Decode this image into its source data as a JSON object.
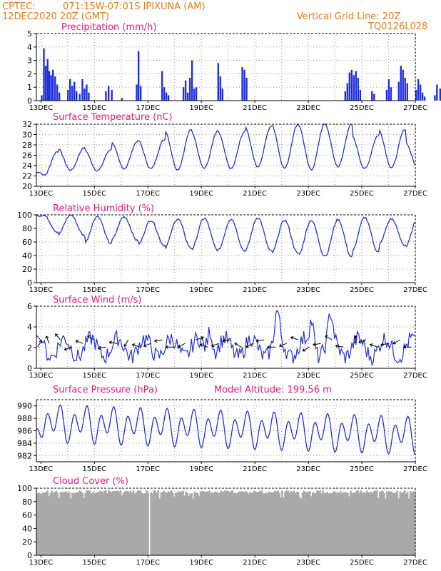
{
  "header": {
    "source": "CPTEC:",
    "location": "071:15W-07:01S  IPIXUNA (AM)",
    "init_time": "12DEC2020 20Z (GMT)",
    "grid_note": "Vertical Grid Line: 20Z",
    "code": "TQ0126L028"
  },
  "colors": {
    "header": "#e87a1a",
    "panel_title": "#e8177f",
    "series": "#1f2fe0",
    "cloud": "#a9a9a9",
    "wind_arrow": "#000000"
  },
  "chart_data": [
    {
      "id": "precip",
      "type": "bar",
      "title": "Precipitation (mm/h)",
      "ylim": [
        0,
        5
      ],
      "yticks": [
        "0",
        "1",
        "2",
        "3",
        "4",
        "5"
      ],
      "x_labels": [
        "13DEC",
        "15DEC",
        "17DEC",
        "19DEC",
        "21DEC",
        "23DEC",
        "25DEC",
        "27DEC"
      ],
      "grid": true,
      "events": [
        {
          "day": 0.2,
          "value": 0.4
        },
        {
          "day": 0.28,
          "value": 3.9
        },
        {
          "day": 0.35,
          "value": 2.6
        },
        {
          "day": 0.42,
          "value": 3.1
        },
        {
          "day": 0.48,
          "value": 2.2
        },
        {
          "day": 0.55,
          "value": 1.9
        },
        {
          "day": 0.62,
          "value": 2.3
        },
        {
          "day": 0.7,
          "value": 1.8
        },
        {
          "day": 0.78,
          "value": 1.2
        },
        {
          "day": 0.86,
          "value": 0.6
        },
        {
          "day": 1.18,
          "value": 0.8
        },
        {
          "day": 1.26,
          "value": 1.6
        },
        {
          "day": 1.34,
          "value": 1.1
        },
        {
          "day": 1.42,
          "value": 1.4
        },
        {
          "day": 1.5,
          "value": 0.7
        },
        {
          "day": 1.62,
          "value": 0.5
        },
        {
          "day": 1.72,
          "value": 1.6
        },
        {
          "day": 1.8,
          "value": 0.9
        },
        {
          "day": 1.88,
          "value": 1.2
        },
        {
          "day": 1.96,
          "value": 0.6
        },
        {
          "day": 2.6,
          "value": 0.7
        },
        {
          "day": 2.7,
          "value": 1.1
        },
        {
          "day": 2.82,
          "value": 0.8
        },
        {
          "day": 3.2,
          "value": 0.2
        },
        {
          "day": 3.75,
          "value": 1.2
        },
        {
          "day": 3.82,
          "value": 3.7
        },
        {
          "day": 3.9,
          "value": 1.1
        },
        {
          "day": 4.7,
          "value": 2.2
        },
        {
          "day": 4.78,
          "value": 1.0
        },
        {
          "day": 4.86,
          "value": 0.6
        },
        {
          "day": 4.94,
          "value": 0.4
        },
        {
          "day": 5.5,
          "value": 1.0
        },
        {
          "day": 5.58,
          "value": 1.5
        },
        {
          "day": 5.66,
          "value": 0.6
        },
        {
          "day": 5.74,
          "value": 1.7
        },
        {
          "day": 5.82,
          "value": 3.0
        },
        {
          "day": 5.9,
          "value": 0.9
        },
        {
          "day": 5.98,
          "value": 1.0
        },
        {
          "day": 6.8,
          "value": 2.8
        },
        {
          "day": 6.88,
          "value": 1.8
        },
        {
          "day": 6.96,
          "value": 0.9
        },
        {
          "day": 7.7,
          "value": 2.5
        },
        {
          "day": 7.78,
          "value": 2.3
        },
        {
          "day": 7.86,
          "value": 1.7
        },
        {
          "day": 11.55,
          "value": 0.7
        },
        {
          "day": 11.63,
          "value": 1.3
        },
        {
          "day": 11.71,
          "value": 2.1
        },
        {
          "day": 11.79,
          "value": 2.3
        },
        {
          "day": 11.87,
          "value": 1.9
        },
        {
          "day": 11.95,
          "value": 2.2
        },
        {
          "day": 12.03,
          "value": 1.7
        },
        {
          "day": 12.11,
          "value": 0.8
        },
        {
          "day": 12.55,
          "value": 0.7
        },
        {
          "day": 12.63,
          "value": 0.5
        },
        {
          "day": 13.1,
          "value": 0.8
        },
        {
          "day": 13.18,
          "value": 1.6
        },
        {
          "day": 13.26,
          "value": 1.0
        },
        {
          "day": 13.55,
          "value": 1.4
        },
        {
          "day": 13.63,
          "value": 2.6
        },
        {
          "day": 13.71,
          "value": 2.3
        },
        {
          "day": 13.79,
          "value": 1.7
        },
        {
          "day": 13.87,
          "value": 1.3
        },
        {
          "day": 14.2,
          "value": 0.8
        },
        {
          "day": 14.28,
          "value": 1.6
        },
        {
          "day": 14.36,
          "value": 1.2
        },
        {
          "day": 14.44,
          "value": 0.6
        },
        {
          "day": 14.52,
          "value": 0.3
        },
        {
          "day": 14.9,
          "value": 0.4
        },
        {
          "day": 14.98,
          "value": 1.2
        },
        {
          "day": 15.1,
          "value": 0.9
        },
        {
          "day": 15.18,
          "value": 0.6
        }
      ]
    },
    {
      "id": "temp",
      "type": "line",
      "title": "Surface Temperature (nC)",
      "ylim": [
        20,
        32
      ],
      "yticks": [
        "20",
        "22",
        "24",
        "26",
        "28",
        "30",
        "32"
      ],
      "x_labels": [
        "13DEC",
        "15DEC",
        "17DEC",
        "19DEC",
        "21DEC",
        "23DEC",
        "25DEC",
        "27DEC"
      ],
      "grid": true,
      "daily_min": [
        22.0,
        23.1,
        23.0,
        23.4,
        23.4,
        23.2,
        23.5,
        23.4,
        23.8,
        23.5,
        23.2,
        23.8,
        23.4,
        23.6,
        23.4,
        24.0
      ],
      "daily_max": [
        26.7,
        27.4,
        27.1,
        28.7,
        29.0,
        30.9,
        30.6,
        30.5,
        31.6,
        32.0,
        32.0,
        32.0,
        29.8,
        31.0,
        28.6,
        29.8
      ],
      "start": 22.5
    },
    {
      "id": "rh",
      "type": "line",
      "title": "Relative Humidity (%)",
      "ylim": [
        0,
        100
      ],
      "yticks": [
        "0",
        "20",
        "40",
        "60",
        "80",
        "100"
      ],
      "x_labels": [
        "13DEC",
        "15DEC",
        "17DEC",
        "19DEC",
        "21DEC",
        "23DEC",
        "25DEC",
        "27DEC"
      ],
      "grid": true,
      "daily_min": [
        75,
        70,
        58,
        62,
        55,
        51,
        48,
        47,
        46,
        43,
        40,
        38,
        45,
        55,
        52,
        58
      ],
      "daily_max": [
        99,
        100,
        98,
        97,
        92,
        94,
        95,
        94,
        96,
        92,
        92,
        93,
        96,
        94,
        96,
        96
      ],
      "start": 100
    },
    {
      "id": "wind",
      "type": "line",
      "title": "Surface Wind (m/s)",
      "ylim": [
        0,
        6
      ],
      "yticks": [
        "0",
        "2",
        "4",
        "6"
      ],
      "x_labels": [
        "13DEC",
        "15DEC",
        "17DEC",
        "19DEC",
        "21DEC",
        "23DEC",
        "25DEC",
        "27DEC"
      ],
      "grid": true,
      "mean": 2.0,
      "peaks": [
        {
          "day": 6.5,
          "value": 4.5
        },
        {
          "day": 9.0,
          "value": 5.2
        },
        {
          "day": 10.3,
          "value": 4.7
        },
        {
          "day": 11.0,
          "value": 4.6
        }
      ],
      "arrows_deg": [
        300,
        250,
        230,
        160,
        200,
        210,
        170,
        190,
        120,
        200,
        160,
        170,
        180,
        150,
        340,
        200,
        160,
        170,
        210,
        150,
        170,
        180,
        160,
        200,
        150,
        170,
        210,
        190,
        280,
        160,
        200,
        170,
        150,
        180
      ]
    },
    {
      "id": "press",
      "type": "line",
      "title": "Surface Pressure (hPa)",
      "subtitle": "Model Altitude: 199.56 m",
      "ylim": [
        981,
        991
      ],
      "yticks": [
        "982",
        "984",
        "986",
        "988",
        "990"
      ],
      "x_labels": [
        "13DEC",
        "15DEC",
        "17DEC",
        "19DEC",
        "21DEC",
        "23DEC",
        "25DEC",
        "27DEC"
      ],
      "grid": true,
      "start": 986.2
    },
    {
      "id": "cloud",
      "type": "area",
      "title": "Cloud Cover (%)",
      "ylim": [
        0,
        100
      ],
      "yticks": [
        "0",
        "20",
        "40",
        "60",
        "80",
        "100"
      ],
      "x_labels": [
        "13DEC",
        "15DEC",
        "17DEC",
        "19DEC",
        "21DEC",
        "23DEC",
        "25DEC",
        "27DEC"
      ],
      "grid": true,
      "typical": 97,
      "gap_day": 4.2
    }
  ]
}
